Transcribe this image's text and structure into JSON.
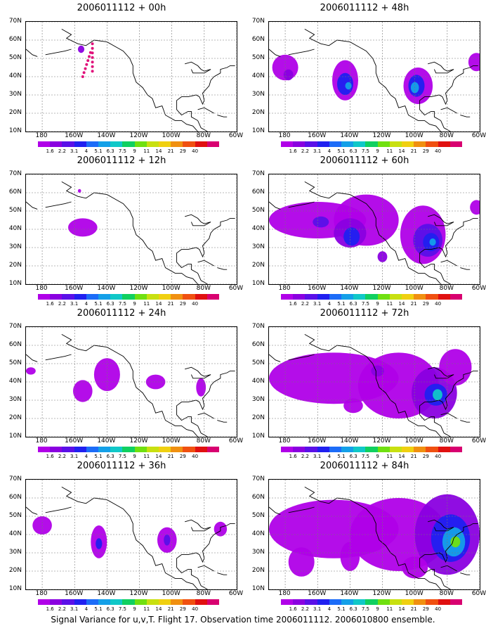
{
  "chart_data": [
    {
      "type": "heatmap",
      "title": "2006011112 + 00h",
      "forecast_hour": 0
    },
    {
      "type": "heatmap",
      "title": "2006011112 + 48h",
      "forecast_hour": 48
    },
    {
      "type": "heatmap",
      "title": "2006011112 + 12h",
      "forecast_hour": 12
    },
    {
      "type": "heatmap",
      "title": "2006011112 + 60h",
      "forecast_hour": 60
    },
    {
      "type": "heatmap",
      "title": "2006011112 + 24h",
      "forecast_hour": 24
    },
    {
      "type": "heatmap",
      "title": "2006011112 + 72h",
      "forecast_hour": 72
    },
    {
      "type": "heatmap",
      "title": "2006011112 + 36h",
      "forecast_hour": 36
    },
    {
      "type": "heatmap",
      "title": "2006011112 + 84h",
      "forecast_hour": 84
    }
  ],
  "axes": {
    "y_ticks": [
      "70N",
      "60N",
      "50N",
      "40N",
      "30N",
      "20N",
      "10N"
    ],
    "y_range": [
      10,
      70
    ],
    "x_ticks": [
      "180",
      "160W",
      "140W",
      "120W",
      "100W",
      "80W",
      "60W"
    ],
    "x_range": [
      -190,
      -60
    ]
  },
  "colorbar": {
    "labels": [
      "1.6",
      "2.2",
      "3.1",
      "4",
      "5.1",
      "6.3",
      "7.5",
      "9",
      "11",
      "14",
      "21",
      "29",
      "40"
    ],
    "colors": [
      "#b000e8",
      "#8a00e0",
      "#5a10e8",
      "#2020f0",
      "#1c6cf8",
      "#14a0e8",
      "#10c8c8",
      "#10d060",
      "#70e010",
      "#c8e010",
      "#f0d010",
      "#f09010",
      "#f05010",
      "#e01010",
      "#d80070"
    ]
  },
  "footer": "Signal Variance for u,v,T. Flight 17. Observation time 2006011112. 2006010800 ensemble."
}
